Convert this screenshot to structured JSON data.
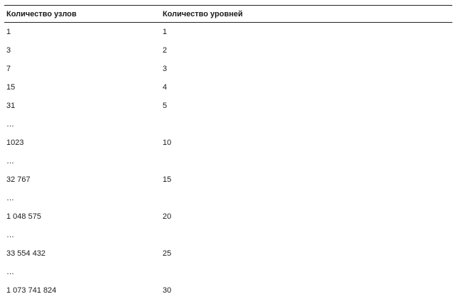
{
  "table": {
    "headers": [
      "Количество узлов",
      "Количество уровней"
    ],
    "rows": [
      [
        "1",
        "1"
      ],
      [
        "3",
        "2"
      ],
      [
        "7",
        "3"
      ],
      [
        "15",
        "4"
      ],
      [
        "31",
        "5"
      ],
      [
        "…",
        ""
      ],
      [
        "1023",
        "10"
      ],
      [
        "…",
        ""
      ],
      [
        "32 767",
        "15"
      ],
      [
        "…",
        ""
      ],
      [
        "1 048 575",
        "20"
      ],
      [
        "…",
        ""
      ],
      [
        "33 554 432",
        "25"
      ],
      [
        "…",
        ""
      ],
      [
        "1 073 741 824",
        "30"
      ]
    ]
  }
}
